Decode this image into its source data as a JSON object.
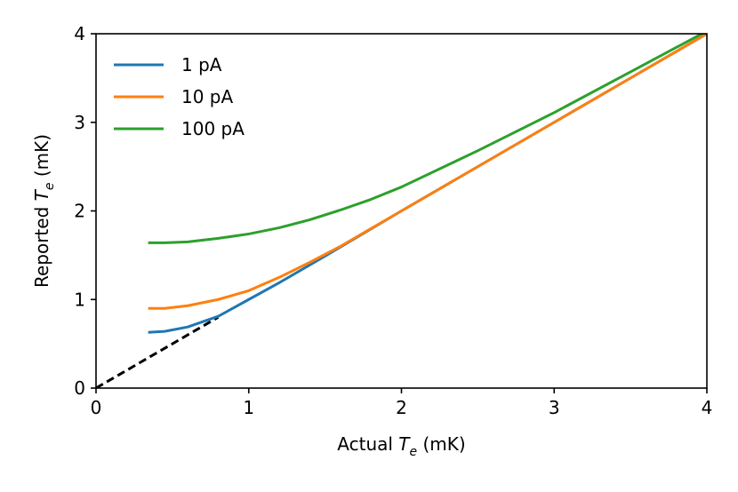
{
  "chart_data": {
    "type": "line",
    "title": "",
    "xlabel": {
      "prefix": "Actual ",
      "var": "T",
      "sub": "e",
      "suffix": " (mK)"
    },
    "ylabel": {
      "prefix": "Reported ",
      "var": "T",
      "sub": "e",
      "suffix": " (mK)"
    },
    "xlim": [
      0,
      4
    ],
    "ylim": [
      0,
      4
    ],
    "xticks": [
      0,
      1,
      2,
      3,
      4
    ],
    "yticks": [
      0,
      1,
      2,
      3,
      4
    ],
    "xtick_labels": [
      "0",
      "1",
      "2",
      "3",
      "4"
    ],
    "ytick_labels": [
      "0",
      "1",
      "2",
      "3",
      "4"
    ],
    "grid": false,
    "legend_position": "top-left",
    "reference_line": {
      "name": "y = x",
      "color": "#000000",
      "style": "dashed",
      "x": [
        0,
        0.8
      ],
      "y": [
        0,
        0.8
      ]
    },
    "series": [
      {
        "name": "1 pA",
        "color": "#1f77b4",
        "x": [
          0.35,
          0.45,
          0.6,
          0.8,
          1.0,
          1.2,
          1.5,
          2.0,
          2.5,
          3.0,
          3.5,
          4.0
        ],
        "y": [
          0.63,
          0.64,
          0.69,
          0.81,
          1.0,
          1.19,
          1.49,
          2.0,
          2.5,
          3.0,
          3.5,
          4.0
        ]
      },
      {
        "name": "10 pA",
        "color": "#ff7f0e",
        "x": [
          0.35,
          0.45,
          0.6,
          0.8,
          1.0,
          1.2,
          1.4,
          1.6,
          1.8,
          2.0,
          2.5,
          3.0,
          3.5,
          4.0
        ],
        "y": [
          0.9,
          0.9,
          0.93,
          1.0,
          1.1,
          1.25,
          1.42,
          1.6,
          1.8,
          2.0,
          2.5,
          3.0,
          3.5,
          4.0
        ]
      },
      {
        "name": "100 pA",
        "color": "#2ca02c",
        "x": [
          0.35,
          0.45,
          0.6,
          0.8,
          1.0,
          1.2,
          1.4,
          1.6,
          1.8,
          2.0,
          2.5,
          3.0,
          3.5,
          4.0
        ],
        "y": [
          1.64,
          1.64,
          1.65,
          1.69,
          1.74,
          1.81,
          1.9,
          2.01,
          2.13,
          2.27,
          2.68,
          3.11,
          3.57,
          4.03
        ]
      }
    ]
  }
}
